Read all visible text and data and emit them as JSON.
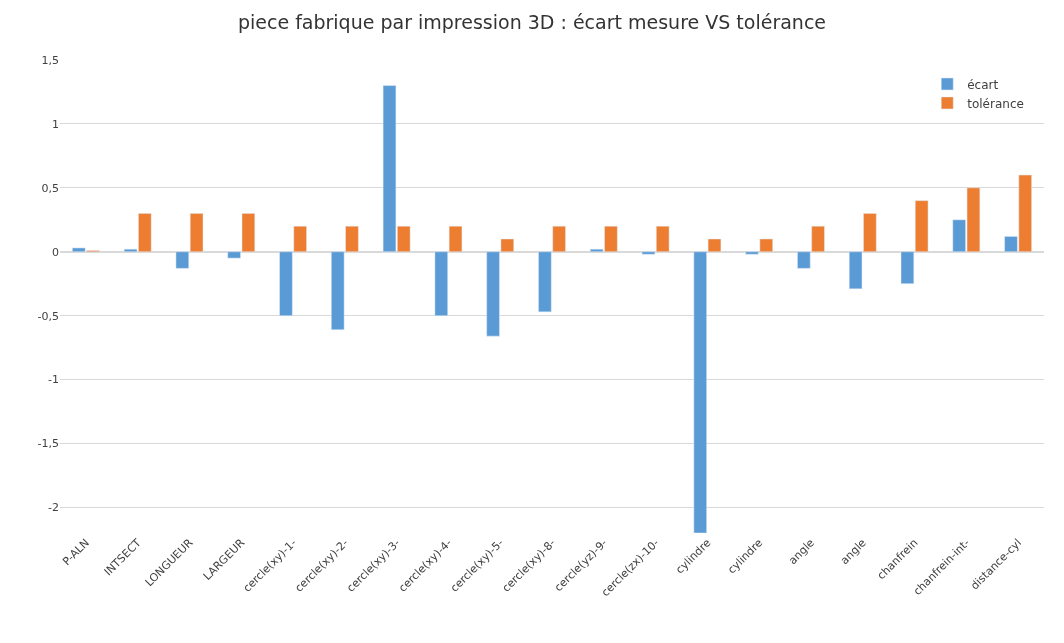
{
  "chart_data": {
    "type": "bar",
    "title": "piece fabrique par impression 3D : écart mesure VS tolérance",
    "categories": [
      "P-ALN",
      "INTSECT",
      "LONGUEUR",
      "LARGEUR",
      "cercle(xy)-1-",
      "cercle(xy)-2-",
      "cercle(xy)-3-",
      "cercle(xy)-4-",
      "cercle(xy)-5-",
      "cercle(xy)-8-",
      "cercle(yz)-9-",
      "cercle(zx)-10-",
      "cylindre",
      "cylindre",
      "angle",
      "angle",
      "chanfrein",
      "chanfrein-int-",
      "distance-cyl"
    ],
    "series": [
      {
        "name": "écart",
        "color": "#5b9bd5",
        "values": [
          0.03,
          0.02,
          -0.13,
          -0.05,
          -0.5,
          -0.61,
          1.3,
          -0.5,
          -0.66,
          -0.47,
          0.02,
          -0.02,
          -2.2,
          -0.02,
          -0.13,
          -0.29,
          -0.25,
          0.25,
          0.12
        ]
      },
      {
        "name": "tolérance",
        "color": "#ed7d31",
        "values": [
          0.01,
          0.3,
          0.3,
          0.3,
          0.2,
          0.2,
          0.2,
          0.2,
          0.1,
          0.2,
          0.2,
          0.2,
          0.1,
          0.1,
          0.2,
          0.3,
          0.4,
          0.5,
          0.6
        ]
      }
    ],
    "ylim": [
      -2.2,
      1.5
    ],
    "yticks": [
      {
        "value": -2,
        "label": "-2"
      },
      {
        "value": -1.5,
        "label": "-1,5"
      },
      {
        "value": -1,
        "label": "-1"
      },
      {
        "value": -0.5,
        "label": "-0,5"
      },
      {
        "value": 0,
        "label": "0"
      },
      {
        "value": 0.5,
        "label": "0,5"
      },
      {
        "value": 1,
        "label": "1"
      },
      {
        "value": 1.5,
        "label": "1,5"
      }
    ],
    "grid": "y",
    "legend": "top right"
  }
}
